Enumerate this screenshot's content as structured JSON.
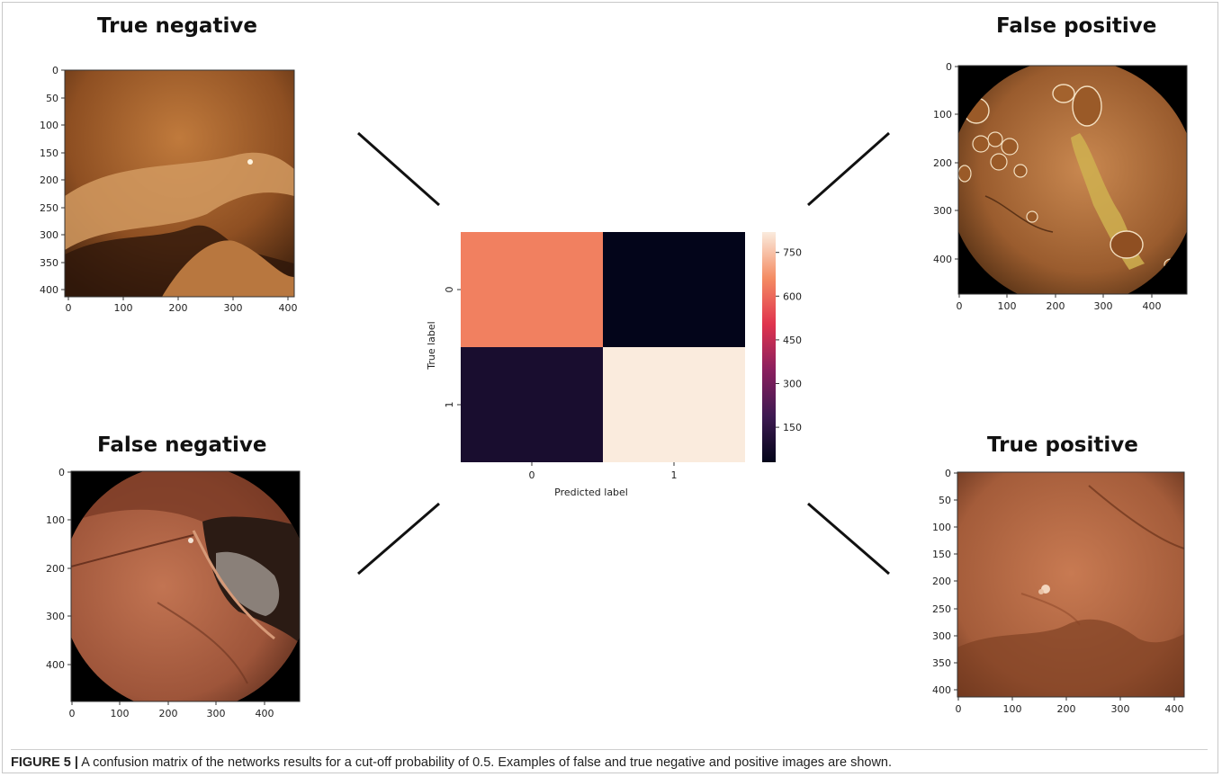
{
  "panels": {
    "true_negative": {
      "title": "True negative",
      "yticks": [
        "0",
        "50",
        "100",
        "150",
        "200",
        "250",
        "300",
        "350",
        "400"
      ],
      "xticks": [
        "0",
        "100",
        "200",
        "300",
        "400"
      ]
    },
    "false_positive": {
      "title": "False positive",
      "yticks": [
        "0",
        "100",
        "200",
        "300",
        "400"
      ],
      "xticks": [
        "0",
        "100",
        "200",
        "300",
        "400"
      ]
    },
    "false_negative": {
      "title": "False negative",
      "yticks": [
        "0",
        "100",
        "200",
        "300",
        "400"
      ],
      "xticks": [
        "0",
        "100",
        "200",
        "300",
        "400"
      ]
    },
    "true_positive": {
      "title": "True positive",
      "yticks": [
        "0",
        "50",
        "100",
        "150",
        "200",
        "250",
        "300",
        "350",
        "400"
      ],
      "xticks": [
        "0",
        "100",
        "200",
        "300",
        "400"
      ]
    }
  },
  "chart_data": {
    "type": "heatmap",
    "title": "",
    "xlabel": "Predicted label",
    "ylabel": "True label",
    "x_categories": [
      "0",
      "1"
    ],
    "y_categories": [
      "0",
      "1"
    ],
    "values": [
      [
        640,
        30
      ],
      [
        90,
        820
      ]
    ],
    "colorbar": {
      "ticks": [
        "150",
        "300",
        "450",
        "600",
        "750"
      ],
      "range": [
        30,
        820
      ],
      "colormap": "rocket"
    }
  },
  "caption": {
    "label": "FIGURE 5 |",
    "text": " A confusion matrix of the networks results for a cut-off probability of 0.5. Examples of false and true negative and positive images are shown."
  }
}
